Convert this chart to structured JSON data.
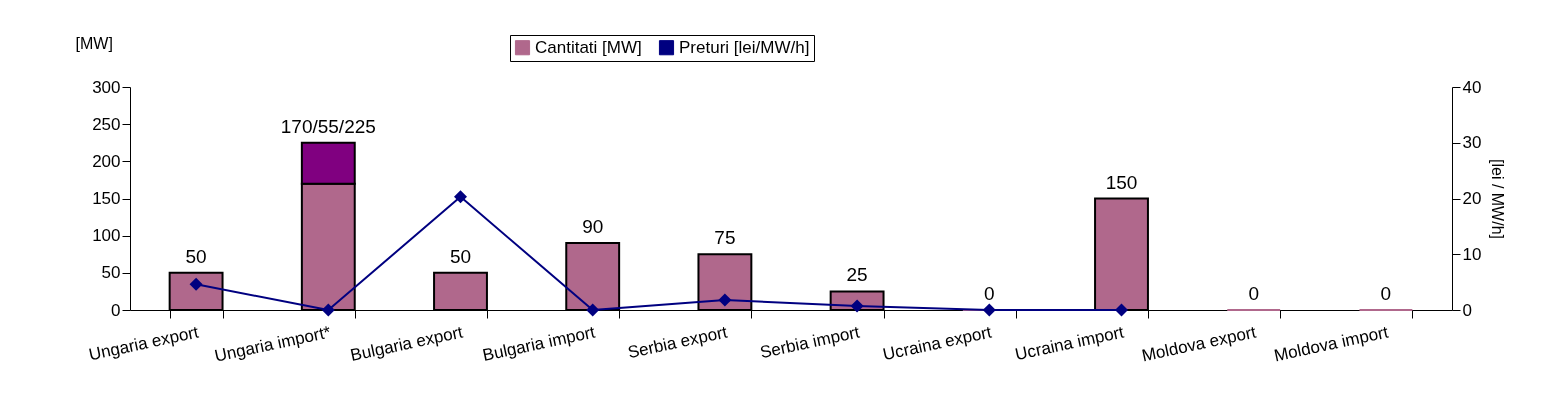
{
  "chart_data": {
    "type": "bar",
    "stacked": true,
    "categories": [
      "Ungaria export",
      "Ungaria import*",
      "Bulgaria export",
      "Bulgaria import",
      "Serbia export",
      "Serbia import",
      "Ucraina export",
      "Ucraina import",
      "Moldova export",
      "Moldova import"
    ],
    "series": [
      {
        "name": "Cantitati  [MW]",
        "color": "#b0688c",
        "values": [
          50,
          170,
          50,
          90,
          75,
          25,
          0,
          150,
          0,
          0
        ],
        "value_labels": [
          "50",
          "170/55/225",
          "50",
          "90",
          "75",
          "25",
          "0",
          "150",
          "0",
          "0"
        ]
      },
      {
        "color": "#800080",
        "values": [
          null,
          55,
          null,
          null,
          null,
          null,
          null,
          null,
          null,
          null
        ]
      },
      {
        "name": "Preturi [lei/MW/h]",
        "type": "line",
        "axis": "y2",
        "color": "#000080",
        "marker": "diamond",
        "values": [
          4.6,
          0,
          20.3,
          0,
          1.8,
          0.7,
          0,
          0,
          null,
          null
        ]
      }
    ],
    "ylabel": "[MW]",
    "y2label": "[lei / MW/h]",
    "ylim": [
      0,
      300
    ],
    "yticks": [
      0,
      50,
      100,
      150,
      200,
      250,
      300
    ],
    "y2lim": [
      0,
      40
    ],
    "y2ticks": [
      0,
      10,
      20,
      30,
      40
    ],
    "grid": false,
    "legend": "top"
  }
}
